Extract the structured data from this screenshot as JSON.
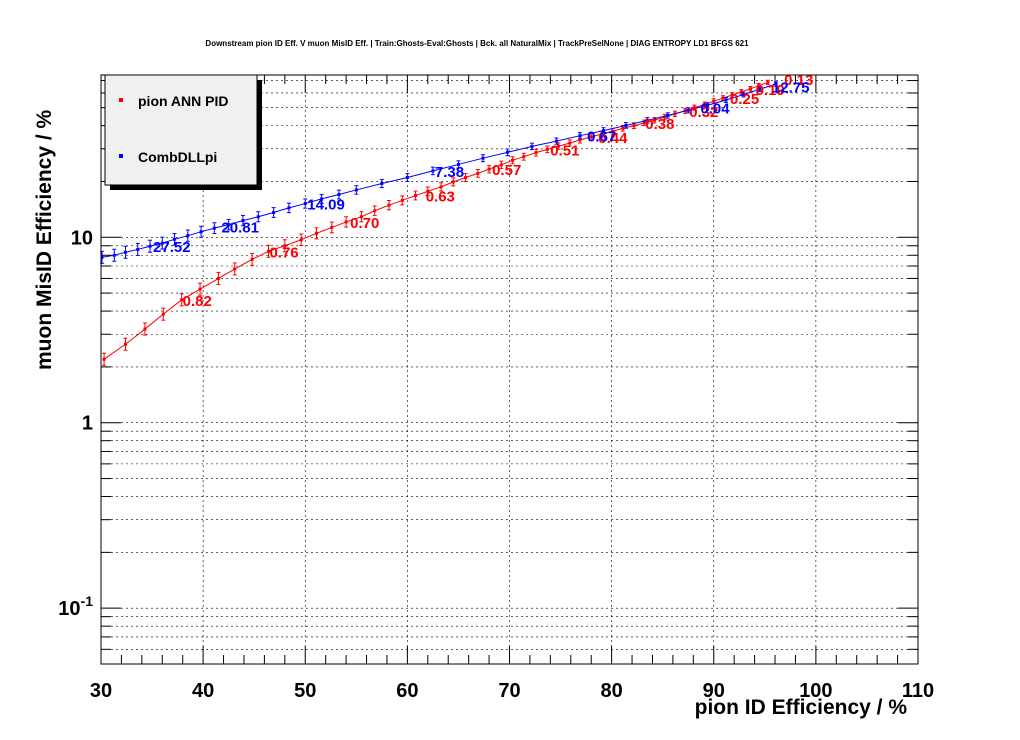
{
  "chart_data": {
    "type": "line",
    "title": "Downstream pion ID Eff. V muon MisID Eff. | Train:Ghosts-Eval:Ghosts | Bck. all NaturalMix | TrackPreSelNone | DIAG ENTROPY LD1 BFGS 621",
    "xlabel": "pion ID Efficiency / %",
    "ylabel": "muon MisID Efficiency / %",
    "xlim": [
      30,
      110
    ],
    "ylim": [
      0.05,
      75
    ],
    "yscale": "log",
    "grid": true,
    "legend_position": "top-left",
    "x_ticks": [
      "30",
      "40",
      "50",
      "60",
      "70",
      "80",
      "90",
      "100",
      "110"
    ],
    "y_ticks": [
      {
        "value": 0.1,
        "base": "10",
        "exp": "-1"
      },
      {
        "value": 1,
        "base": "1",
        "exp": ""
      },
      {
        "value": 10,
        "base": "10",
        "exp": ""
      }
    ],
    "series": [
      {
        "name": "pion ANN PID",
        "color": "#ff0000",
        "x": [
          30.3,
          32.4,
          34.3,
          36.1,
          37.9,
          39.7,
          41.5,
          43.1,
          44.8,
          46.4,
          48.0,
          49.6,
          51.1,
          52.6,
          54.0,
          55.5,
          56.8,
          58.2,
          59.5,
          60.8,
          62.0,
          63.3,
          64.5,
          65.7,
          66.9,
          68.0,
          69.2,
          70.3,
          71.4,
          72.6,
          73.7,
          74.8,
          75.9,
          76.9,
          78.0,
          79.0,
          80.1,
          81.1,
          82.2,
          83.2,
          84.2,
          85.2,
          86.2,
          87.2,
          88.1,
          89.1,
          90.0,
          90.9,
          91.8,
          92.7,
          93.6,
          94.4,
          95.3
        ],
        "y": [
          2.2,
          2.65,
          3.2,
          3.85,
          4.6,
          5.25,
          6.0,
          6.75,
          7.6,
          8.4,
          9.0,
          9.7,
          10.5,
          11.3,
          12.1,
          12.9,
          13.9,
          14.9,
          15.8,
          16.8,
          17.7,
          18.7,
          19.9,
          21.0,
          22.1,
          23.3,
          24.6,
          26.0,
          27.2,
          28.6,
          29.8,
          31.0,
          32.2,
          33.5,
          34.8,
          36.0,
          37.3,
          38.7,
          40.0,
          41.4,
          42.8,
          44.5,
          46.3,
          48.1,
          50.0,
          52.0,
          54.1,
          56.3,
          58.5,
          60.8,
          63.2,
          65.7,
          68.4
        ],
        "annotations": [
          {
            "x": 37.8,
            "y": 4.6,
            "label": "0.82"
          },
          {
            "x": 46.3,
            "y": 8.4,
            "label": "0.76"
          },
          {
            "x": 54.2,
            "y": 12.1,
            "label": "0.70"
          },
          {
            "x": 61.6,
            "y": 16.8,
            "label": "0.63"
          },
          {
            "x": 68.1,
            "y": 23.3,
            "label": "0.57"
          },
          {
            "x": 73.8,
            "y": 29.8,
            "label": "0.51"
          },
          {
            "x": 78.5,
            "y": 34.8,
            "label": "0.44"
          },
          {
            "x": 83.1,
            "y": 41.4,
            "label": "0.38"
          },
          {
            "x": 87.4,
            "y": 48.1,
            "label": "0.32"
          },
          {
            "x": 91.4,
            "y": 56.3,
            "label": "0.25"
          },
          {
            "x": 93.9,
            "y": 63.2,
            "label": "0.19"
          },
          {
            "x": 96.7,
            "y": 71.5,
            "label": "0.13"
          }
        ]
      },
      {
        "name": "CombDLLpi",
        "color": "#0000ff",
        "x": [
          30.1,
          31.3,
          32.4,
          33.6,
          34.8,
          36.0,
          37.2,
          38.5,
          39.8,
          41.1,
          42.5,
          43.9,
          45.4,
          46.9,
          48.4,
          50.0,
          51.6,
          53.3,
          55.0,
          57.5,
          60.0,
          62.5,
          65.0,
          67.4,
          69.8,
          72.2,
          74.6,
          76.9,
          79.2,
          81.4,
          83.5,
          85.5,
          87.5,
          89.4,
          91.2,
          92.9,
          94.5,
          96.1
        ],
        "y": [
          7.8,
          8.0,
          8.3,
          8.6,
          8.95,
          9.3,
          9.75,
          10.2,
          10.7,
          11.2,
          11.7,
          12.3,
          12.9,
          13.6,
          14.4,
          15.2,
          16.1,
          17.0,
          18.0,
          19.5,
          21.0,
          22.8,
          24.7,
          26.7,
          28.7,
          30.9,
          33.0,
          35.3,
          37.6,
          40.1,
          42.7,
          45.4,
          48.4,
          51.5,
          55.0,
          58.8,
          62.9,
          67.0
        ],
        "annotations": [
          {
            "x": 34.9,
            "y": 8.95,
            "label": "27.52"
          },
          {
            "x": 41.6,
            "y": 11.4,
            "label": "20.81"
          },
          {
            "x": 50.0,
            "y": 15.2,
            "label": "14.09"
          },
          {
            "x": 62.5,
            "y": 22.8,
            "label": "7.38"
          },
          {
            "x": 77.4,
            "y": 35.3,
            "label": "0.67"
          },
          {
            "x": 88.5,
            "y": 50.0,
            "label": "0.04"
          },
          {
            "x": 95.5,
            "y": 65.0,
            "label": "12.75"
          }
        ]
      }
    ]
  }
}
